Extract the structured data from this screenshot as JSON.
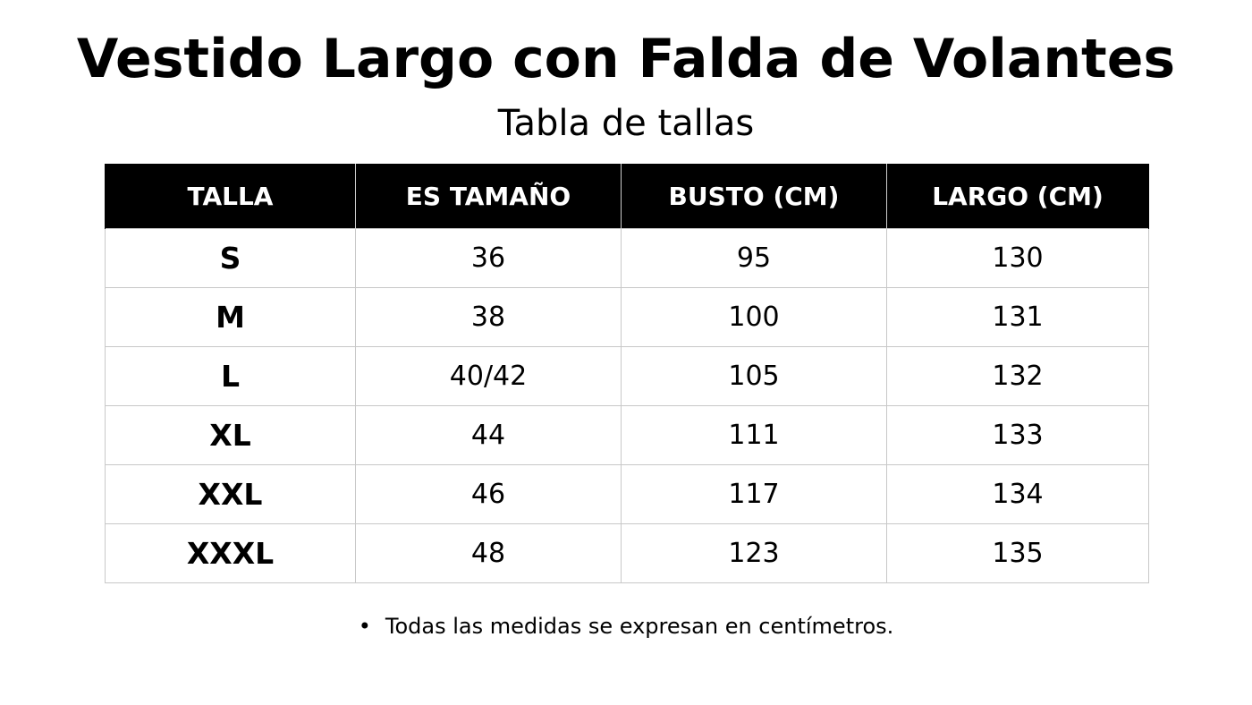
{
  "title": "Vestido Largo con Falda de Volantes",
  "subtitle": "Tabla de tallas",
  "table": {
    "headers": [
      "TALLA",
      "ES TAMAÑO",
      "BUSTO (CM)",
      "LARGO (CM)"
    ],
    "rows": [
      [
        "S",
        "36",
        "95",
        "130"
      ],
      [
        "M",
        "38",
        "100",
        "131"
      ],
      [
        "L",
        "40/42",
        "105",
        "132"
      ],
      [
        "XL",
        "44",
        "111",
        "133"
      ],
      [
        "XXL",
        "46",
        "117",
        "134"
      ],
      [
        "XXXL",
        "48",
        "123",
        "135"
      ]
    ]
  },
  "footnote": {
    "bullet": "•",
    "text": "Todas las medidas se expresan en centímetros."
  },
  "colors": {
    "header_background": "#000000",
    "header_text": "#ffffff",
    "grid_line": "#c8c8c8"
  }
}
